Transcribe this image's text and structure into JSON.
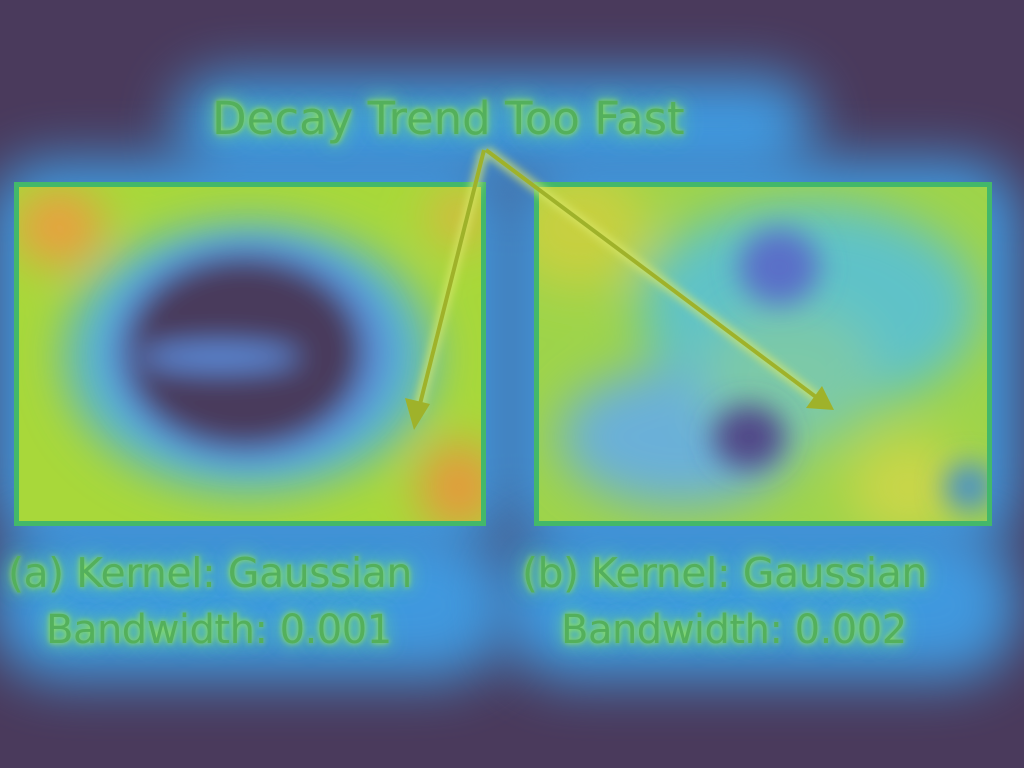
{
  "title": "Decay Trend Too Fast",
  "panels": [
    {
      "caption_line1": "(a) Kernel: Gaussian",
      "caption_line2": "Bandwidth: 0.001"
    },
    {
      "caption_line1": "(b) Kernel: Gaussian",
      "caption_line2": "Bandwidth: 0.002"
    }
  ],
  "colors": {
    "background": "#4a3a5c",
    "text": "#54b05c",
    "halo": "#3fa9f5",
    "arrow": "#9fb22a",
    "panel_border": "#43b86a"
  }
}
